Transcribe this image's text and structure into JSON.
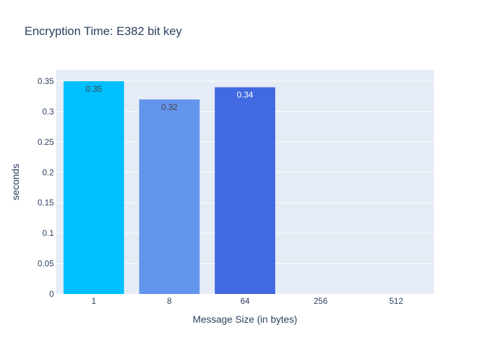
{
  "chart_data": {
    "type": "bar",
    "title": "Encryption Time: E382 bit key",
    "xlabel": "Message Size (in bytes)",
    "ylabel": "seconds",
    "categories": [
      "1",
      "8",
      "64",
      "256",
      "512"
    ],
    "values": [
      0.35,
      0.32,
      0.34,
      0,
      0
    ],
    "data_labels": [
      "0.35",
      "0.32",
      "0.34",
      "",
      ""
    ],
    "bar_colors": [
      "#00bfff",
      "#6495ed",
      "#4169e1",
      "#4169e1",
      "#4169e1"
    ],
    "data_label_colors": [
      "#444444",
      "#444444",
      "#ffffff",
      "#444444",
      "#444444"
    ],
    "ylim": [
      0,
      0.35
    ],
    "yticks": [
      0,
      0.05,
      0.1,
      0.15,
      0.2,
      0.25,
      0.3,
      0.35
    ],
    "ytick_labels": [
      "0",
      "0.05",
      "0.1",
      "0.15",
      "0.2",
      "0.25",
      "0.3",
      "0.35"
    ],
    "grid": true,
    "plot_background": "#e5ecf6",
    "grid_color": "#ffffff",
    "text_color": "#2a3f5f"
  }
}
